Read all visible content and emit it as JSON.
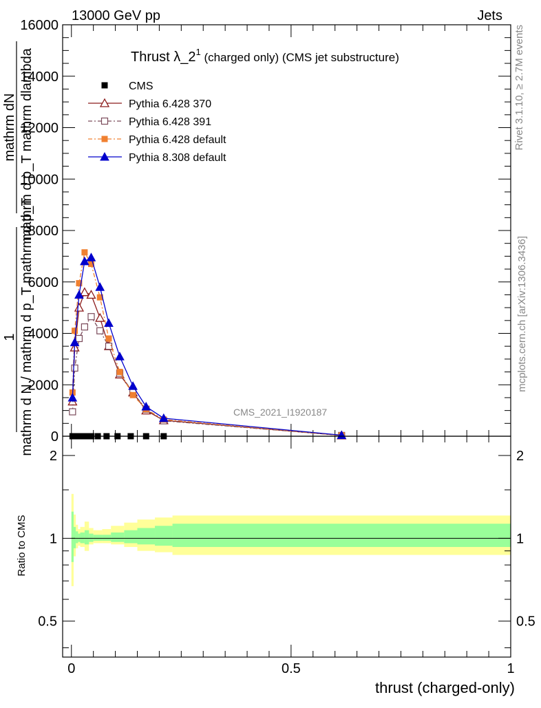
{
  "header": {
    "energy_label": "13000 GeV pp",
    "category_label": "Jets"
  },
  "side_labels": {
    "rivet": "Rivet 3.1.10, ≥ 2.7M events",
    "mcplots": "mcplots.cern.ch [arXiv:1306.3436]"
  },
  "watermark": "CMS_2021_I1920187",
  "chart_data": [
    {
      "type": "line",
      "title": {
        "main": "Thrust λ_2",
        "superscript": "1",
        "sub": " (charged only) (CMS jet substructure)"
      },
      "ylabel_lines": [
        "mathrm dN",
        "mathrm d p_T mathrm dlambda",
        "1",
        "mathrm d N / mathrm d p_T mathrm d p_T"
      ],
      "ylim": [
        0,
        16000
      ],
      "xlim": [
        -0.02,
        1.0
      ],
      "yticks": [
        0,
        2000,
        4000,
        6000,
        8000,
        10000,
        12000,
        14000,
        16000
      ],
      "ytick_labels": [
        "0",
        "2000",
        "4000",
        "6000",
        "8000",
        "10000",
        "12000",
        "14000",
        "16000"
      ],
      "legend_position": "top-left",
      "series": [
        {
          "name": "CMS",
          "color": "#000000",
          "marker": "square-filled",
          "x": [
            0.0025,
            0.0075,
            0.0125,
            0.0175,
            0.025,
            0.035,
            0.045,
            0.06,
            0.08,
            0.105,
            0.135,
            0.17,
            0.21
          ],
          "y": [
            0,
            0,
            0,
            0,
            0,
            0,
            0,
            0,
            0,
            0,
            0,
            0,
            0
          ]
        },
        {
          "name": "Pythia 6.428 370",
          "color": "#8b1a1a",
          "marker": "triangle-open",
          "x": [
            0.0025,
            0.0075,
            0.0175,
            0.03,
            0.045,
            0.065,
            0.085,
            0.11,
            0.14,
            0.17,
            0.21,
            0.615
          ],
          "y": [
            1350,
            3450,
            5000,
            5600,
            5500,
            4600,
            3500,
            2400,
            1700,
            1000,
            620,
            30
          ]
        },
        {
          "name": "Pythia 6.428 391",
          "color": "#7a4a5a",
          "marker": "square-open",
          "x": [
            0.0025,
            0.0075,
            0.0175,
            0.03,
            0.045,
            0.065,
            0.085,
            0.11,
            0.14,
            0.17,
            0.21,
            0.615
          ],
          "y": [
            950,
            2650,
            3800,
            4250,
            4650,
            4100,
            3500,
            2450,
            1700,
            1050,
            600,
            30
          ]
        },
        {
          "name": "Pythia 6.428 default",
          "color": "#f08030",
          "marker": "square-filled",
          "x": [
            0.0025,
            0.0075,
            0.0175,
            0.03,
            0.045,
            0.065,
            0.085,
            0.11,
            0.14,
            0.17,
            0.21,
            0.615
          ],
          "y": [
            1700,
            4100,
            5950,
            7150,
            6700,
            5400,
            3800,
            2500,
            1600,
            1050,
            650,
            30
          ]
        },
        {
          "name": "Pythia 8.308 default",
          "color": "#0000cc",
          "marker": "triangle-filled",
          "x": [
            0.0025,
            0.0075,
            0.0175,
            0.03,
            0.045,
            0.065,
            0.085,
            0.11,
            0.14,
            0.17,
            0.21,
            0.615
          ],
          "y": [
            1500,
            3650,
            5500,
            6800,
            6950,
            5800,
            4400,
            3100,
            1950,
            1150,
            700,
            40
          ]
        }
      ]
    },
    {
      "type": "area",
      "ylabel": "Ratio to CMS",
      "xlabel": "thrust (charged-only)",
      "xlim": [
        -0.02,
        1.0
      ],
      "ylim": [
        0.37,
        2.35
      ],
      "xticks": [
        0,
        0.5,
        1
      ],
      "xtick_labels": [
        "0",
        "0.5",
        "1"
      ],
      "yticks": [
        0.5,
        1,
        2
      ],
      "ytick_labels": [
        "0.5",
        "1",
        "2"
      ],
      "reference_line": 1,
      "bands": {
        "edges": [
          0.0,
          0.005,
          0.01,
          0.015,
          0.02,
          0.03,
          0.04,
          0.05,
          0.07,
          0.09,
          0.12,
          0.15,
          0.19,
          0.23,
          1.0
        ],
        "outer_color": "#ffff99",
        "inner_color": "#99ff99",
        "outer_hi": [
          1.45,
          1.22,
          1.12,
          1.08,
          1.1,
          1.15,
          1.09,
          1.07,
          1.08,
          1.11,
          1.14,
          1.17,
          1.19,
          1.21
        ],
        "outer_lo": [
          0.67,
          0.86,
          0.92,
          0.94,
          0.93,
          0.9,
          0.95,
          0.96,
          0.96,
          0.95,
          0.93,
          0.9,
          0.89,
          0.87
        ],
        "inner_hi": [
          1.25,
          1.1,
          1.06,
          1.04,
          1.05,
          1.07,
          1.04,
          1.03,
          1.03,
          1.05,
          1.07,
          1.09,
          1.11,
          1.13
        ],
        "inner_lo": [
          0.82,
          0.92,
          0.96,
          0.97,
          0.96,
          0.95,
          0.97,
          0.98,
          0.98,
          0.97,
          0.96,
          0.95,
          0.94,
          0.93
        ]
      }
    }
  ]
}
